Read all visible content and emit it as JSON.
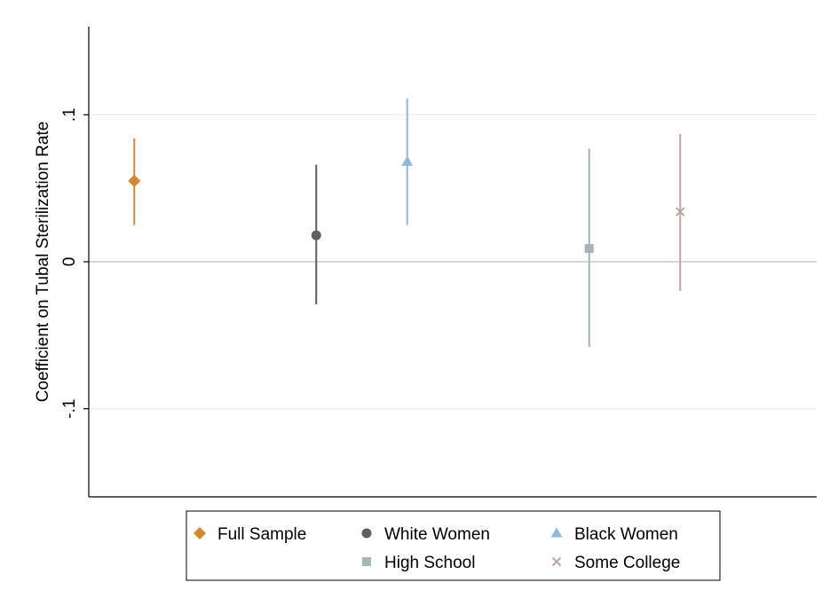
{
  "chart_data": {
    "type": "scatter",
    "title": "",
    "xlabel": "",
    "ylabel": "Coefficient on Tubal Sterilization Rate",
    "ylim": [
      -0.16,
      0.16
    ],
    "xlim": [
      0.5,
      8.5
    ],
    "yticks": [
      {
        "value": 0.1,
        "label": ".1"
      },
      {
        "value": 0,
        "label": "0"
      },
      {
        "value": -0.1,
        "label": "-.1"
      }
    ],
    "grid": true,
    "legend_position": "bottom",
    "series": [
      {
        "name": "Full Sample",
        "marker": "diamond",
        "color": "#d4882a",
        "x": 1,
        "estimate": 0.055,
        "ci": [
          0.025,
          0.084
        ]
      },
      {
        "name": "White Women",
        "marker": "circle",
        "color": "#5f5f5f",
        "x": 3,
        "estimate": 0.018,
        "ci": [
          -0.029,
          0.066
        ]
      },
      {
        "name": "Black Women",
        "marker": "triangle",
        "color": "#8fb8e0",
        "x": 4,
        "estimate": 0.068,
        "ci": [
          0.025,
          0.111
        ]
      },
      {
        "name": "High School",
        "marker": "square",
        "color": "#a3b8b6",
        "x": 6,
        "estimate": 0.009,
        "ci": [
          -0.058,
          0.077
        ]
      },
      {
        "name": "Some College",
        "marker": "x",
        "color": "#c0a69e",
        "x": 7,
        "estimate": 0.034,
        "ci": [
          -0.02,
          0.087
        ]
      }
    ]
  }
}
